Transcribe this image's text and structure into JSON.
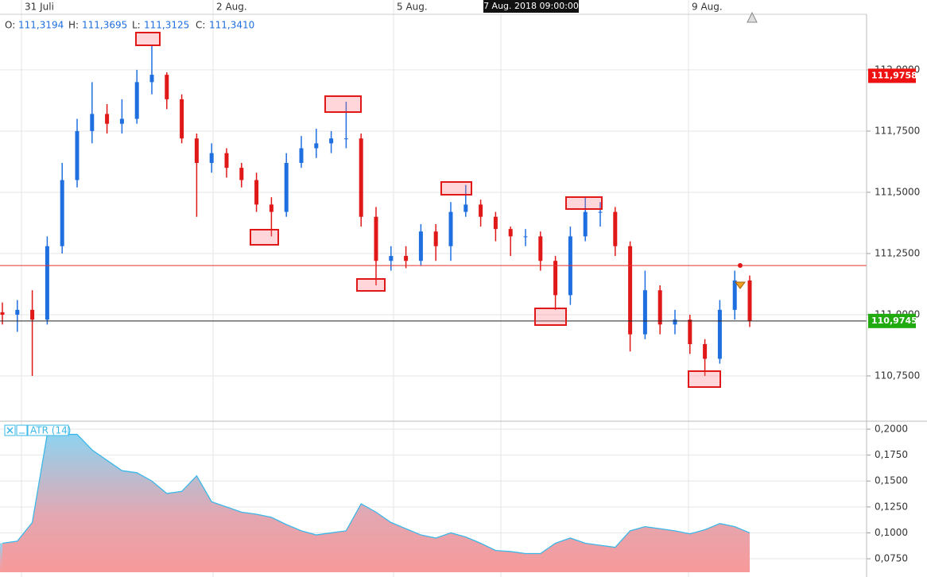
{
  "header": {
    "open_label": "O:",
    "open": "111,3194",
    "high_label": "H:",
    "high": "111,3695",
    "low_label": "L:",
    "low": "111,3125",
    "close_label": "C:",
    "close": "111,3410"
  },
  "date_labels": [
    "31 Juli",
    "2 Aug.",
    "5 Aug.",
    "9 Aug."
  ],
  "crosshair_date": "7 Aug. 2018 09:00:00",
  "chart_data": [
    {
      "type": "candlestick",
      "up_color": "#1f6fe0",
      "down_color": "#e01818",
      "open": [
        111.01,
        111.0,
        111.02,
        110.98,
        111.28,
        111.55,
        111.75,
        111.82,
        111.78,
        111.8,
        111.95,
        111.98,
        111.88,
        111.72,
        111.62,
        111.66,
        111.6,
        111.55,
        111.45,
        111.42,
        111.62,
        111.68,
        111.7,
        111.72,
        111.72,
        111.4,
        111.22,
        111.24,
        111.22,
        111.34,
        111.28,
        111.42,
        111.45,
        111.4,
        111.35,
        111.32,
        111.32,
        111.22,
        111.08,
        111.32,
        111.42,
        111.42,
        111.28,
        110.92,
        111.1,
        110.96,
        110.98,
        110.88,
        110.82,
        111.02,
        111.14
      ],
      "high": [
        111.05,
        111.06,
        111.1,
        111.32,
        111.62,
        111.8,
        111.95,
        111.86,
        111.88,
        112.0,
        112.1,
        111.99,
        111.9,
        111.74,
        111.7,
        111.68,
        111.62,
        111.58,
        111.48,
        111.66,
        111.73,
        111.76,
        111.75,
        111.87,
        111.74,
        111.44,
        111.28,
        111.28,
        111.37,
        111.37,
        111.46,
        111.53,
        111.47,
        111.42,
        111.36,
        111.35,
        111.34,
        111.24,
        111.36,
        111.48,
        111.46,
        111.44,
        111.3,
        111.18,
        111.12,
        111.02,
        111.0,
        110.9,
        111.06,
        111.18,
        111.16
      ],
      "low": [
        110.96,
        110.93,
        110.75,
        110.96,
        111.25,
        111.52,
        111.7,
        111.74,
        111.74,
        111.78,
        111.9,
        111.84,
        111.7,
        111.4,
        111.58,
        111.56,
        111.52,
        111.42,
        111.32,
        111.4,
        111.6,
        111.64,
        111.66,
        111.68,
        111.36,
        111.12,
        111.18,
        111.19,
        111.2,
        111.22,
        111.22,
        111.4,
        111.36,
        111.3,
        111.24,
        111.28,
        111.18,
        111.02,
        111.04,
        111.3,
        111.36,
        111.24,
        110.85,
        110.9,
        110.92,
        110.92,
        110.84,
        110.75,
        110.8,
        110.98,
        110.95
      ],
      "close": [
        111.0,
        111.02,
        110.98,
        111.28,
        111.55,
        111.75,
        111.82,
        111.78,
        111.8,
        111.95,
        111.98,
        111.88,
        111.72,
        111.62,
        111.66,
        111.6,
        111.55,
        111.45,
        111.42,
        111.62,
        111.68,
        111.7,
        111.72,
        111.72,
        111.4,
        111.22,
        111.24,
        111.22,
        111.34,
        111.28,
        111.42,
        111.45,
        111.4,
        111.35,
        111.32,
        111.32,
        111.22,
        111.08,
        111.32,
        111.42,
        111.42,
        111.28,
        110.92,
        111.1,
        110.96,
        110.98,
        110.88,
        110.82,
        111.02,
        111.14,
        110.975
      ],
      "ylim": [
        110.565,
        112.227
      ],
      "yticks": [
        {
          "value": 110.75,
          "label": "110,7500"
        },
        {
          "value": 111,
          "label": "111,0000"
        },
        {
          "value": 111.25,
          "label": "111,2500"
        },
        {
          "value": 111.5,
          "label": "111,5000"
        },
        {
          "value": 111.75,
          "label": "111,7500"
        },
        {
          "value": 112,
          "label": "112,0000"
        }
      ],
      "grid": true,
      "lines": [
        {
          "value": 111.201,
          "color": "#e53030"
        },
        {
          "value": 110.9745,
          "color": "#222222"
        }
      ],
      "badges": [
        {
          "value": 111.9758,
          "label": "111,9758",
          "color": "#ee1111"
        },
        {
          "value": 110.9745,
          "label": "110,9745",
          "color": "#22aa11"
        }
      ]
    },
    {
      "type": "area",
      "name": "ATR (14)",
      "line_color": "#3cb8e8",
      "values": [
        0.09,
        0.092,
        0.11,
        0.195,
        0.195,
        0.195,
        0.18,
        0.17,
        0.16,
        0.158,
        0.15,
        0.138,
        0.14,
        0.155,
        0.13,
        0.125,
        0.12,
        0.118,
        0.115,
        0.108,
        0.102,
        0.098,
        0.1,
        0.102,
        0.128,
        0.12,
        0.11,
        0.104,
        0.098,
        0.095,
        0.1,
        0.096,
        0.09,
        0.083,
        0.082,
        0.08,
        0.08,
        0.09,
        0.095,
        0.09,
        0.088,
        0.086,
        0.102,
        0.106,
        0.104,
        0.102,
        0.099,
        0.103,
        0.109,
        0.106,
        0.1
      ],
      "ylim": [
        0.062,
        0.2077
      ],
      "yticks": [
        {
          "value": 0.075,
          "label": "0,0750"
        },
        {
          "value": 0.1,
          "label": "0,1000"
        },
        {
          "value": 0.125,
          "label": "0,1250"
        },
        {
          "value": 0.15,
          "label": "0,1500"
        },
        {
          "value": 0.175,
          "label": "0,1750"
        },
        {
          "value": 0.2,
          "label": "0,2000"
        }
      ],
      "grid": true
    }
  ]
}
